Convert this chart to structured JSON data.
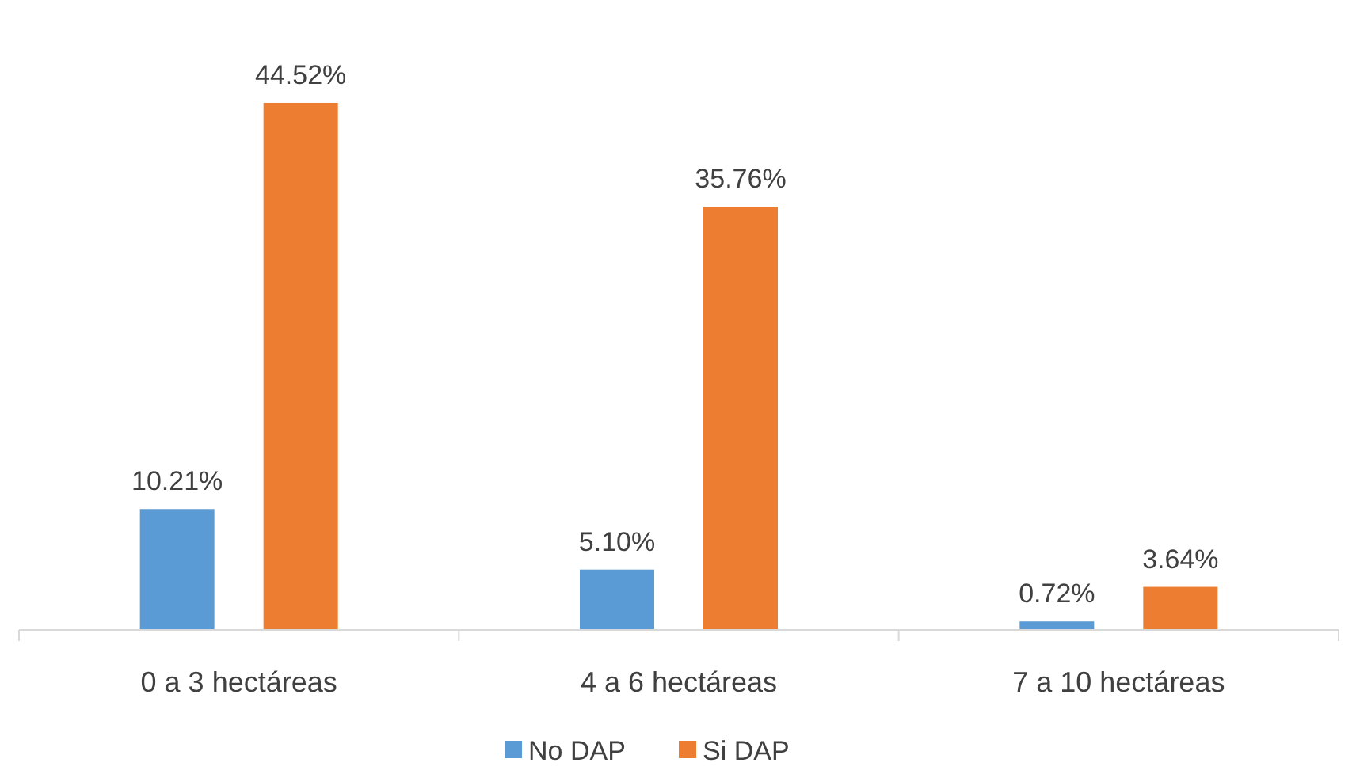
{
  "chart_data": {
    "type": "bar",
    "categories": [
      "0 a 3 hectáreas",
      "4 a 6 hectáreas",
      "7 a 10 hectáreas"
    ],
    "series": [
      {
        "name": "No DAP",
        "color": "#5b9bd5",
        "values": [
          10.21,
          5.1,
          0.72
        ],
        "value_labels": [
          "10.21%",
          "5.10%",
          "0.72%"
        ]
      },
      {
        "name": "Si DAP",
        "color": "#ed7d31",
        "values": [
          44.52,
          35.76,
          3.64
        ],
        "value_labels": [
          "44.52%",
          "35.76%",
          "3.64%"
        ]
      }
    ],
    "legend": "bottom"
  }
}
